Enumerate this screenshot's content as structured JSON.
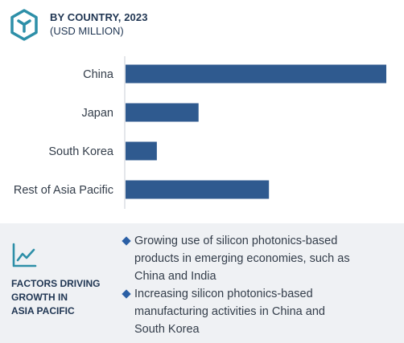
{
  "header": {
    "title": "BY COUNTRY, 2023",
    "subtitle": "(USD MILLION)"
  },
  "colors": {
    "bar": "#2f5a8f",
    "heading": "#1f3552",
    "icon": "#2d8fa8",
    "bullet": "#2a5fa5",
    "panel": "#eff1f4"
  },
  "chart_data": {
    "type": "bar",
    "orientation": "horizontal",
    "categories": [
      "China",
      "Japan",
      "South Korea",
      "Rest of Asia Pacific"
    ],
    "values": [
      100,
      28,
      12,
      55
    ],
    "value_note": "relative bar lengths, axis unlabeled",
    "title": "BY COUNTRY, 2023",
    "subtitle": "(USD MILLION)",
    "xlim": [
      0,
      100
    ],
    "grid": false,
    "legend": "none"
  },
  "factors": {
    "icon": "line-chart-icon",
    "title_lines": [
      "FACTORS DRIVING",
      "GROWTH IN",
      "ASIA PACIFIC"
    ],
    "items": [
      {
        "icon": "diamond-bullet-icon",
        "lines": [
          "Growing use of silicon photonics-based",
          "products in emerging economies, such as",
          "China and India"
        ]
      },
      {
        "icon": "diamond-bullet-icon",
        "lines": [
          "Increasing silicon photonics-based",
          "manufacturing activities in China and",
          "South Korea"
        ]
      }
    ]
  }
}
